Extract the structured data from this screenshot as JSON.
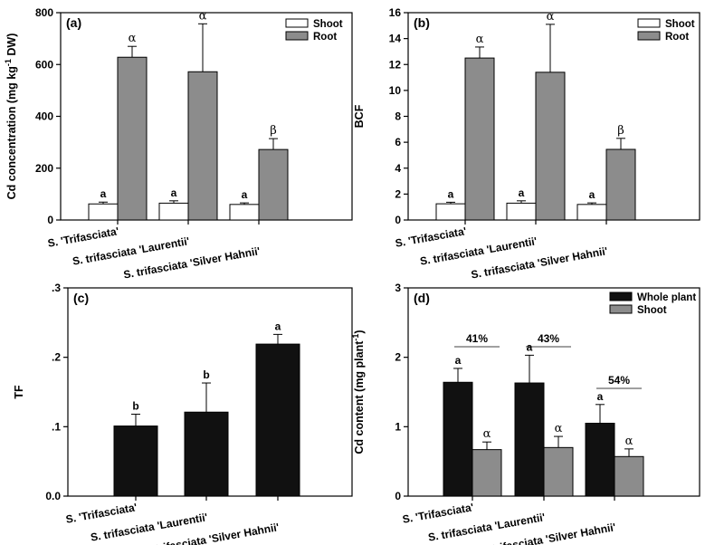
{
  "chart_data": [
    {
      "type": "bar",
      "panel_label": "(a)",
      "ylabel": "Cd concentration (mg kg-1 DW)",
      "ylabel_main": "Cd concentration (mg kg",
      "ylabel_sup": "-1",
      "ylabel_end": " DW)",
      "ylim": [
        0,
        800
      ],
      "yticks": [
        0,
        200,
        400,
        600,
        800
      ],
      "categories": [
        "S. 'Trifasciata'",
        "S. trifasciata 'Laurentii'",
        "S. trifasciata 'Silver Hahnii'"
      ],
      "series": [
        {
          "name": "Shoot",
          "color": "#ffffff",
          "values": [
            62,
            65,
            60
          ],
          "errors": [
            7,
            9,
            6
          ],
          "labels": [
            "a",
            "a",
            "a"
          ]
        },
        {
          "name": "Root",
          "color": "#8c8c8c",
          "values": [
            628,
            572,
            272
          ],
          "errors": [
            42,
            185,
            42
          ],
          "labels": [
            "α",
            "α",
            "β"
          ]
        }
      ]
    },
    {
      "type": "bar",
      "panel_label": "(b)",
      "ylabel": "BCF",
      "ylim": [
        0,
        16
      ],
      "yticks": [
        0,
        2,
        4,
        6,
        8,
        10,
        12,
        14,
        16
      ],
      "categories": [
        "S. 'Trifasciata'",
        "S. trifasciata 'Laurentii'",
        "S. trifasciata 'Silver Hahnii'"
      ],
      "series": [
        {
          "name": "Shoot",
          "color": "#ffffff",
          "values": [
            1.25,
            1.3,
            1.2
          ],
          "errors": [
            0.12,
            0.18,
            0.12
          ],
          "labels": [
            "a",
            "a",
            "a"
          ]
        },
        {
          "name": "Root",
          "color": "#8c8c8c",
          "values": [
            12.5,
            11.4,
            5.45
          ],
          "errors": [
            0.85,
            3.7,
            0.85
          ],
          "labels": [
            "α",
            "α",
            "β"
          ]
        }
      ]
    },
    {
      "type": "bar",
      "panel_label": "(c)",
      "ylabel": "TF",
      "ylim": [
        0,
        0.3
      ],
      "yticks": [
        0,
        0.1,
        0.2,
        0.3
      ],
      "ytick_labels": [
        "0.0",
        ".1",
        ".2",
        ".3"
      ],
      "categories": [
        "S. 'Trifasciata'",
        "S. trifasciata 'Laurentii'",
        "S. trifasciata 'Silver Hahnii'"
      ],
      "series": [
        {
          "name": "TF",
          "color": "#111111",
          "values": [
            0.101,
            0.121,
            0.219
          ],
          "errors": [
            0.017,
            0.042,
            0.014
          ],
          "labels": [
            "b",
            "b",
            "a"
          ]
        }
      ]
    },
    {
      "type": "bar",
      "panel_label": "(d)",
      "ylabel": "Cd content (mg plant-1)",
      "ylabel_main": "Cd content (mg plant",
      "ylabel_sup": "-1",
      "ylabel_end": ")",
      "ylim": [
        0,
        3
      ],
      "yticks": [
        0,
        1,
        2,
        3
      ],
      "categories": [
        "S. 'Trifasciata'",
        "S. trifasciata 'Laurentii'",
        "S. trifasciata 'Silver Hahnii'"
      ],
      "series": [
        {
          "name": "Whole plant",
          "color": "#111111",
          "values": [
            1.64,
            1.63,
            1.05
          ],
          "errors": [
            0.2,
            0.4,
            0.27
          ],
          "labels": [
            "a",
            "a",
            "a"
          ]
        },
        {
          "name": "Shoot",
          "color": "#8c8c8c",
          "values": [
            0.67,
            0.7,
            0.57
          ],
          "errors": [
            0.11,
            0.16,
            0.11
          ],
          "labels": [
            "α",
            "α",
            "α"
          ]
        }
      ],
      "annotations": [
        "41%",
        "43%",
        "54%"
      ]
    }
  ]
}
